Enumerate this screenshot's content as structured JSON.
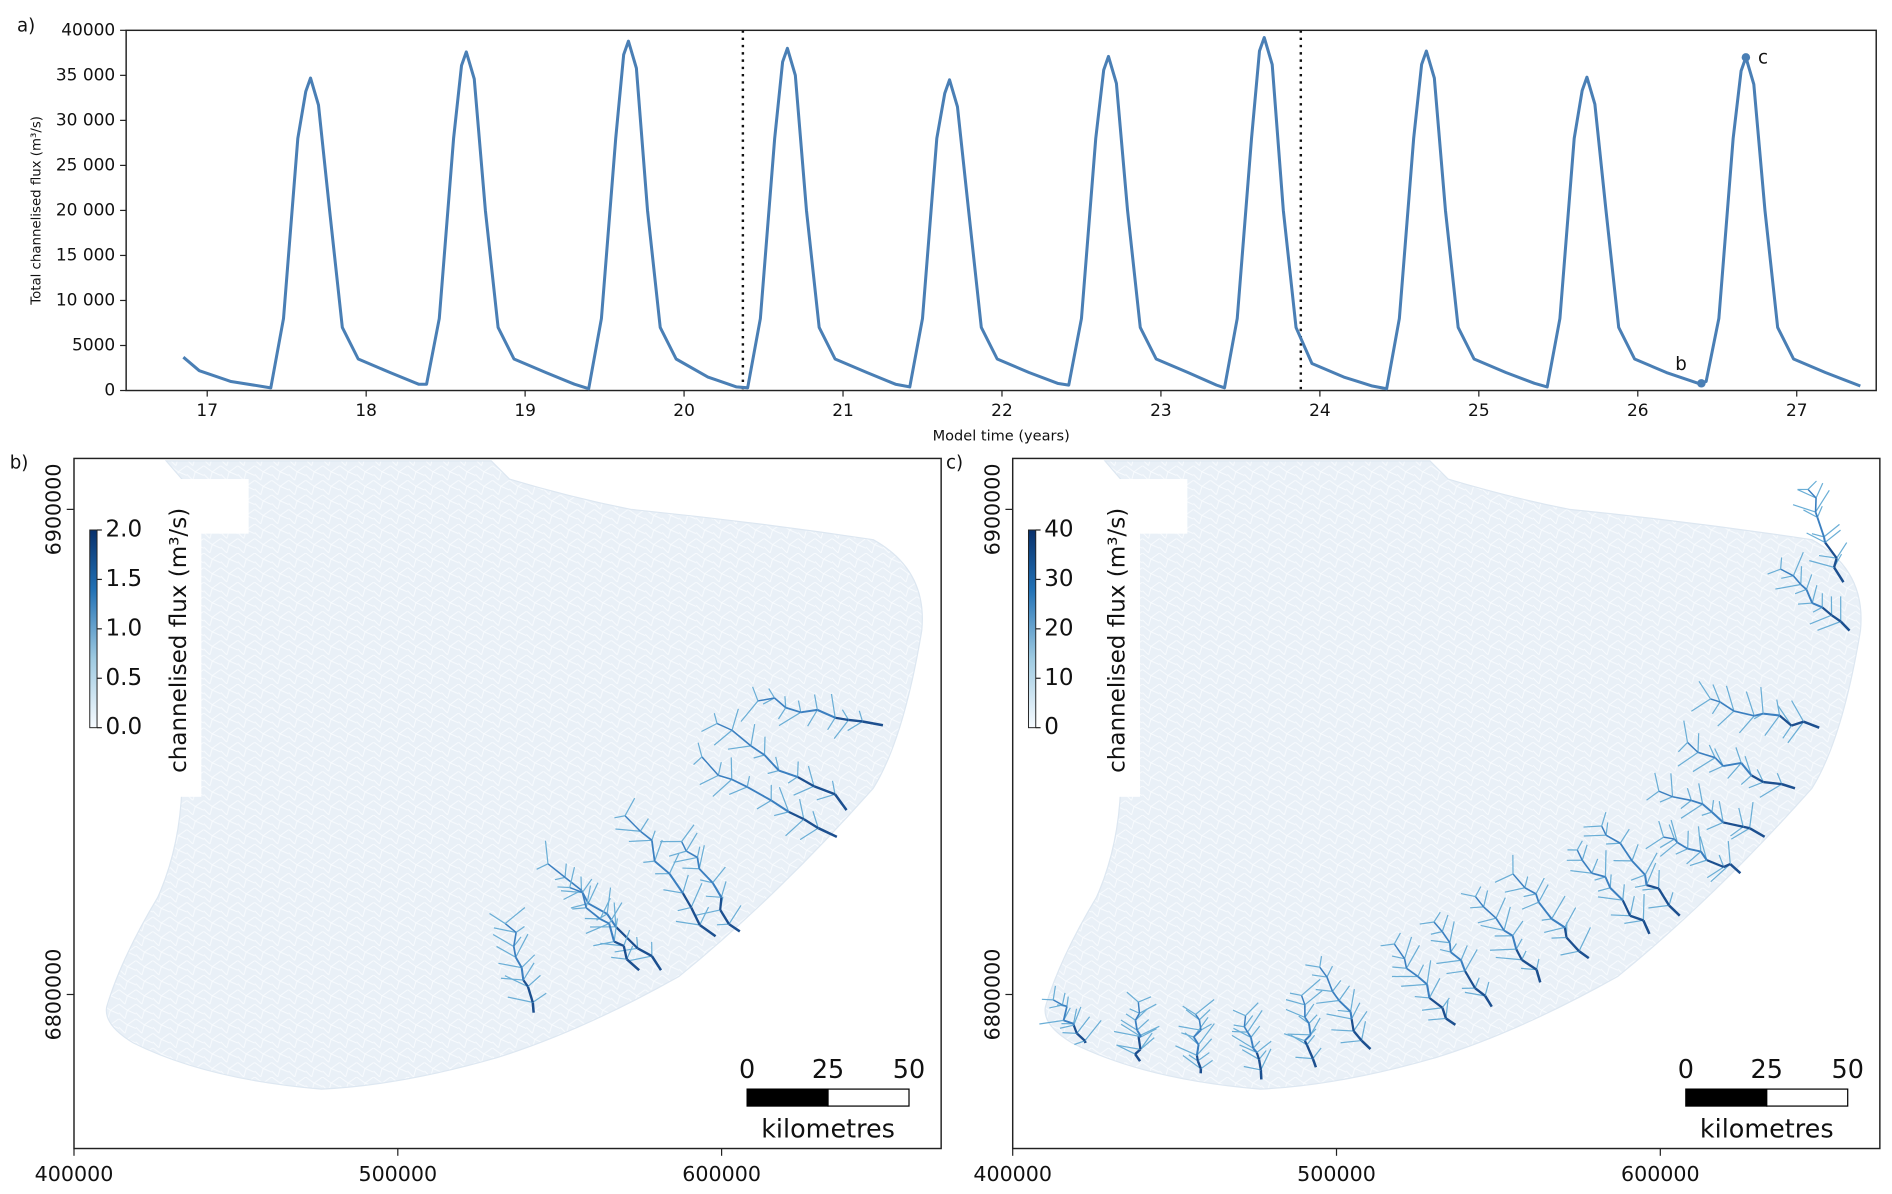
{
  "chart_data": [
    {
      "type": "line",
      "panel": "a)",
      "xlabel": "Model time (years)",
      "ylabel": "Total channelised flux (m³/s)",
      "color": "#4a7fb5",
      "xlim": [
        16.49,
        27.5
      ],
      "ylim": [
        0,
        40000
      ],
      "xticks": [
        17,
        18,
        19,
        20,
        21,
        22,
        23,
        24,
        25,
        26,
        27
      ],
      "yticks": [
        0,
        5000,
        {
          "value": 10000,
          "label": "10 000"
        },
        {
          "value": 15000,
          "label": "15 000"
        },
        {
          "value": 20000,
          "label": "20 000"
        },
        {
          "value": 25000,
          "label": "25 000"
        },
        {
          "value": 30000,
          "label": "30 000"
        },
        {
          "value": 35000,
          "label": "35 000"
        },
        40000
      ],
      "vlines": [
        20.37,
        23.88
      ],
      "markers": [
        {
          "label": "b",
          "x": 26.4,
          "y": 800
        },
        {
          "label": "c",
          "x": 26.68,
          "y": 37000
        }
      ],
      "x": [
        16.85,
        16.95,
        17.15,
        17.4,
        17.48,
        17.57,
        17.62,
        17.65,
        17.7,
        17.77,
        17.85,
        17.95,
        18.15,
        18.33,
        18.38,
        18.46,
        18.55,
        18.6,
        18.63,
        18.68,
        18.75,
        18.83,
        18.93,
        19.13,
        19.31,
        19.4,
        19.48,
        19.57,
        19.62,
        19.65,
        19.7,
        19.77,
        19.85,
        19.95,
        20.15,
        20.33,
        20.4,
        20.48,
        20.57,
        20.62,
        20.65,
        20.7,
        20.77,
        20.85,
        20.95,
        21.15,
        21.33,
        21.42,
        21.5,
        21.59,
        21.64,
        21.67,
        21.72,
        21.79,
        21.87,
        21.97,
        22.17,
        22.35,
        22.42,
        22.5,
        22.59,
        22.64,
        22.67,
        22.72,
        22.79,
        22.87,
        22.97,
        23.17,
        23.35,
        23.4,
        23.48,
        23.57,
        23.62,
        23.65,
        23.7,
        23.77,
        23.85,
        23.95,
        24.15,
        24.33,
        24.42,
        24.5,
        24.59,
        24.64,
        24.67,
        24.72,
        24.79,
        24.87,
        24.97,
        25.17,
        25.35,
        25.43,
        25.51,
        25.6,
        25.65,
        25.68,
        25.73,
        25.8,
        25.88,
        25.98,
        26.18,
        26.38,
        26.43,
        26.51,
        26.6,
        26.65,
        26.68,
        26.73,
        26.8,
        26.88,
        26.98,
        27.18,
        27.4
      ],
      "values": [
        3700,
        2200,
        1000,
        300,
        8000,
        28000,
        33200,
        34700,
        31700,
        20000,
        7000,
        3500,
        2000,
        700,
        700,
        8000,
        28000,
        36100,
        37600,
        34600,
        20000,
        7000,
        3500,
        2000,
        700,
        200,
        8000,
        28000,
        37300,
        38800,
        35800,
        20000,
        7000,
        3500,
        1500,
        400,
        300,
        8000,
        28000,
        36500,
        38000,
        35000,
        20000,
        7000,
        3500,
        2000,
        700,
        400,
        8000,
        28000,
        33000,
        34500,
        31500,
        20000,
        7000,
        3500,
        2000,
        800,
        600,
        8000,
        28000,
        35600,
        37100,
        34100,
        20000,
        7000,
        3500,
        2000,
        600,
        300,
        8000,
        28000,
        37700,
        39200,
        36200,
        20000,
        7000,
        3000,
        1500,
        500,
        200,
        8000,
        28000,
        36200,
        37700,
        34700,
        20000,
        7000,
        3500,
        2000,
        800,
        400,
        8000,
        28000,
        33300,
        34800,
        31800,
        20000,
        7000,
        3500,
        2000,
        800,
        1000,
        8000,
        28000,
        35500,
        37000,
        34000,
        20000,
        7000,
        3500,
        2000,
        500
      ]
    },
    {
      "type": "map",
      "panel": "b)",
      "xlim": [
        400000,
        667800
      ],
      "ylim": [
        6768250,
        6910500
      ],
      "xticks": [
        400000,
        500000,
        600000
      ],
      "yticks": [
        6800000,
        6900000
      ],
      "colorbar": {
        "label": "channelised flux (m³/s)",
        "lim": [
          0,
          2
        ],
        "ticks": [
          {
            "value": 0,
            "label": "0.0"
          },
          {
            "value": 0.5,
            "label": "0.5"
          },
          {
            "value": 1,
            "label": "1.0"
          },
          {
            "value": 1.5,
            "label": "1.5"
          },
          {
            "value": 2,
            "label": "2.0"
          }
        ]
      },
      "scalebar": {
        "ticks": [
          0,
          25,
          50
        ],
        "label": "kilometres"
      }
    },
    {
      "type": "map",
      "panel": "c)",
      "xlim": [
        400000,
        667800
      ],
      "ylim": [
        6768250,
        6910500
      ],
      "xticks": [
        400000,
        500000,
        600000
      ],
      "yticks": [
        6800000,
        6900000
      ],
      "colorbar": {
        "label": "channelised flux (m³/s)",
        "lim": [
          0,
          40
        ],
        "ticks": [
          0,
          10,
          20,
          30,
          40
        ]
      },
      "scalebar": {
        "ticks": [
          0,
          25,
          50
        ],
        "label": "kilometres"
      }
    }
  ]
}
